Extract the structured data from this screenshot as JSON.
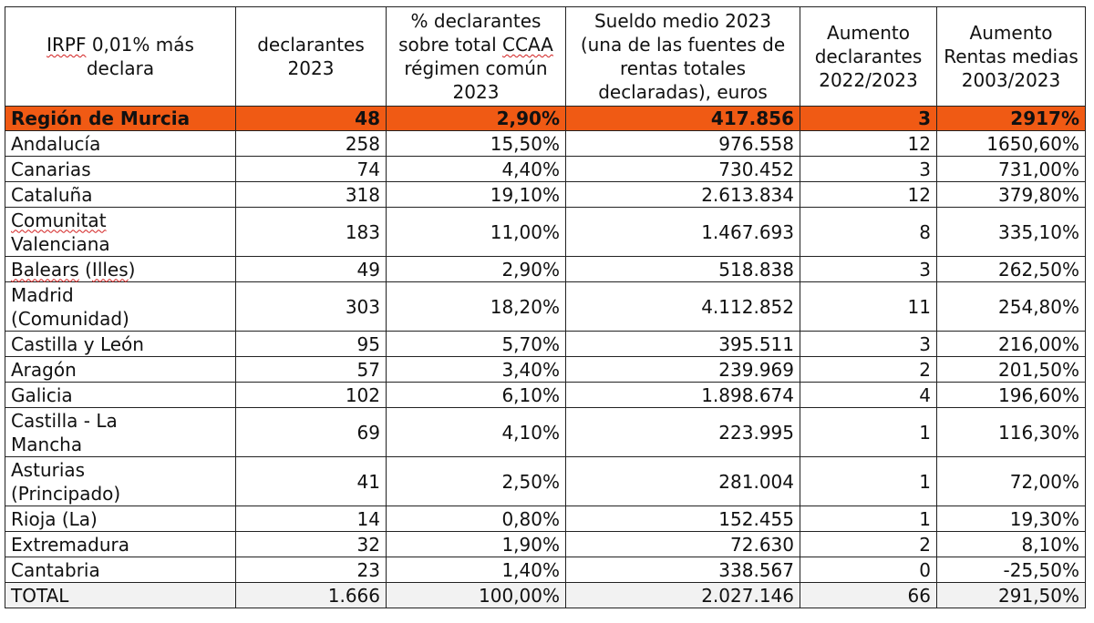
{
  "header": {
    "col1_a": "IRPF",
    "col1_b": " 0,01% más declara",
    "col2": "declarantes 2023",
    "col3_a": "% declarantes sobre total ",
    "col3_b": "CCAA",
    "col3_c": " régimen común 2023",
    "col4": "Sueldo medio 2023 (una de las fuentes de rentas totales declaradas), euros",
    "col5": "Aumento declarantes 2022/2023",
    "col6": "Aumento Rentas medias 2003/2023"
  },
  "highlight": {
    "region": "Región de Murcia",
    "declarantes": "48",
    "porcentaje": "2,90%",
    "sueldo": "417.856",
    "aumento_declarantes": "3",
    "aumento_rentas": "2917%"
  },
  "rows": [
    {
      "region_a": "Andalucía",
      "region_b": "",
      "declarantes": "258",
      "porcentaje": "15,50%",
      "sueldo": "976.558",
      "aumento_declarantes": "12",
      "aumento_rentas": "1650,60%"
    },
    {
      "region_a": "Canarias",
      "region_b": "",
      "declarantes": "74",
      "porcentaje": "4,40%",
      "sueldo": "730.452",
      "aumento_declarantes": "3",
      "aumento_rentas": "731,00%"
    },
    {
      "region_a": "Cataluña",
      "region_b": "",
      "declarantes": "318",
      "porcentaje": "19,10%",
      "sueldo": "2.613.834",
      "aumento_declarantes": "12",
      "aumento_rentas": "379,80%"
    },
    {
      "region_a": "Comunitat",
      "region_b": "Valenciana",
      "declarantes": "183",
      "porcentaje": "11,00%",
      "sueldo": "1.467.693",
      "aumento_declarantes": "8",
      "aumento_rentas": "335,10%"
    },
    {
      "region_a": "Balears",
      "region_mid": " (",
      "region_c": "Illes",
      "region_end": ")",
      "region_b": "",
      "declarantes": "49",
      "porcentaje": "2,90%",
      "sueldo": "518.838",
      "aumento_declarantes": "3",
      "aumento_rentas": "262,50%"
    },
    {
      "region_a": "Madrid",
      "region_b": "(Comunidad)",
      "declarantes": "303",
      "porcentaje": "18,20%",
      "sueldo": "4.112.852",
      "aumento_declarantes": "11",
      "aumento_rentas": "254,80%"
    },
    {
      "region_a": "Castilla y León",
      "region_b": "",
      "declarantes": "95",
      "porcentaje": "5,70%",
      "sueldo": "395.511",
      "aumento_declarantes": "3",
      "aumento_rentas": "216,00%"
    },
    {
      "region_a": "Aragón",
      "region_b": "",
      "declarantes": "57",
      "porcentaje": "3,40%",
      "sueldo": "239.969",
      "aumento_declarantes": "2",
      "aumento_rentas": "201,50%"
    },
    {
      "region_a": "Galicia",
      "region_b": "",
      "declarantes": "102",
      "porcentaje": "6,10%",
      "sueldo": "1.898.674",
      "aumento_declarantes": "4",
      "aumento_rentas": "196,60%"
    },
    {
      "region_a": "Castilla - La",
      "region_b": "Mancha",
      "declarantes": "69",
      "porcentaje": "4,10%",
      "sueldo": "223.995",
      "aumento_declarantes": "1",
      "aumento_rentas": "116,30%"
    },
    {
      "region_a": "Asturias",
      "region_b": "(Principado)",
      "declarantes": "41",
      "porcentaje": "2,50%",
      "sueldo": "281.004",
      "aumento_declarantes": "1",
      "aumento_rentas": "72,00%"
    },
    {
      "region_a": "Rioja (La)",
      "region_b": "",
      "declarantes": "14",
      "porcentaje": "0,80%",
      "sueldo": "152.455",
      "aumento_declarantes": "1",
      "aumento_rentas": "19,30%"
    },
    {
      "region_a": "Extremadura",
      "region_b": "",
      "declarantes": "32",
      "porcentaje": "1,90%",
      "sueldo": "72.630",
      "aumento_declarantes": "2",
      "aumento_rentas": "8,10%"
    },
    {
      "region_a": "Cantabria",
      "region_b": "",
      "declarantes": "23",
      "porcentaje": "1,40%",
      "sueldo": "338.567",
      "aumento_declarantes": "0",
      "aumento_rentas": "-25,50%"
    }
  ],
  "total": {
    "region": "TOTAL",
    "declarantes": "1.666",
    "porcentaje": "100,00%",
    "sueldo": "2.027.146",
    "aumento_declarantes": "66",
    "aumento_rentas": "291,50%"
  }
}
